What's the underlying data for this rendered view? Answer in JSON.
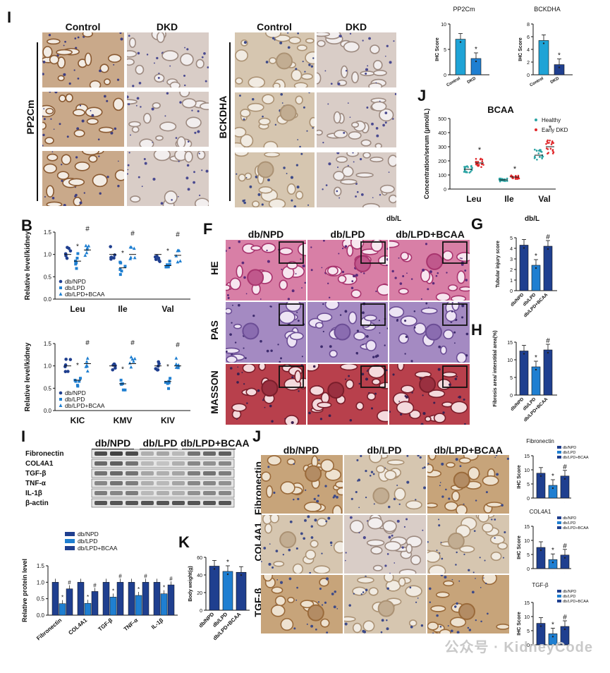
{
  "panel_labels": [
    "I",
    "J",
    "B",
    "F",
    "G",
    "H",
    "I",
    "K",
    "J"
  ],
  "ihc_top": {
    "left": {
      "col1": "Control",
      "col2": "DKD",
      "row_label": "PP2Cm"
    },
    "right": {
      "col1": "Control",
      "col2": "DKD",
      "row_label": "BCKDHA"
    }
  },
  "he_panel": {
    "col1": "db/NPD",
    "col2": "db/LPD",
    "col3": "db/LPD+BCAA",
    "rows": [
      "HE",
      "PAS",
      "MASSON"
    ],
    "cut_label": "db/L"
  },
  "wb_panel": {
    "groups": [
      "db/NPD",
      "db/LPD",
      "db/LPD+BCAA"
    ],
    "rows": [
      "Fibronectin",
      "COL4A1",
      "TGF-β",
      "TNF-α",
      "IL-1β",
      "β-actin"
    ]
  },
  "ihc_bottom": {
    "col1": "db/NPD",
    "col2": "db/LPD",
    "col3": "db/LPD+BCAA",
    "rows": [
      "Fibronectin",
      "COL4A1",
      "TGF-β"
    ]
  },
  "watermark": "公众号 · KidneyCode",
  "colors": {
    "dark_blue": "#1f3f8f",
    "mid_blue": "#1f7fd1",
    "cyan": "#1fa3d6",
    "healthy": "#2aa3a3",
    "early_dkd": "#e0282b",
    "brown": "#9a6a3a"
  },
  "chart_data": [
    {
      "id": "pp2cm",
      "type": "bar",
      "title": "PP2Cm",
      "ylabel": "IHC Score",
      "categories": [
        "Control",
        "DKD"
      ],
      "values": [
        7.0,
        3.2
      ],
      "ylim": [
        0,
        10
      ],
      "yticks": [
        "0",
        "5",
        "10"
      ],
      "sig": [
        "",
        "*"
      ]
    },
    {
      "id": "bckdha",
      "type": "bar",
      "title": "BCKDHA",
      "ylabel": "IHC Score",
      "categories": [
        "Control",
        "DKD"
      ],
      "values": [
        5.4,
        1.6
      ],
      "ylim": [
        0,
        8
      ],
      "yticks": [
        "0",
        "2",
        "4",
        "6",
        "8"
      ],
      "sig": [
        "",
        "*"
      ]
    },
    {
      "id": "bcaa_serum",
      "type": "scatter",
      "title": "BCAA",
      "ylabel": "Concentration/serum (μmol/L)",
      "categories": [
        "Leu",
        "Ile",
        "Val"
      ],
      "ylim": [
        0,
        500
      ],
      "yticks": [
        "0",
        "100",
        "200",
        "300",
        "400",
        "500"
      ],
      "series": [
        {
          "name": "Healthy",
          "means": [
            140,
            65,
            240
          ]
        },
        {
          "name": "Early DKD",
          "means": [
            185,
            85,
            300
          ]
        }
      ],
      "sig": [
        "*",
        "*",
        "*"
      ]
    },
    {
      "id": "b_aa",
      "type": "scatter",
      "ylabel": "Relative level/kidney",
      "categories": [
        "Leu",
        "Ile",
        "Val"
      ],
      "ylim": [
        0.0,
        1.5
      ],
      "yticks": [
        "0.0",
        "0.5",
        "1.0",
        "1.5"
      ],
      "series": [
        {
          "name": "db/NPD",
          "means": [
            1.0,
            1.0,
            1.0
          ]
        },
        {
          "name": "db/LPD",
          "means": [
            0.85,
            0.7,
            0.75
          ]
        },
        {
          "name": "db/LPD+BCAA",
          "means": [
            1.1,
            1.0,
            0.98
          ]
        }
      ],
      "sig": [
        "*#",
        "*#",
        "*#"
      ]
    },
    {
      "id": "b_keto",
      "type": "scatter",
      "ylabel": "Relative level/kidney",
      "categories": [
        "KIC",
        "KMV",
        "KIV"
      ],
      "ylim": [
        0.0,
        1.5
      ],
      "yticks": [
        "0.0",
        "0.5",
        "1.0",
        "1.5"
      ],
      "series": [
        {
          "name": "db/NPD",
          "means": [
            1.0,
            1.0,
            1.0
          ]
        },
        {
          "name": "db/LPD",
          "means": [
            0.68,
            0.6,
            0.65
          ]
        },
        {
          "name": "db/LPD+BCAA",
          "means": [
            1.05,
            1.05,
            1.0
          ]
        }
      ],
      "sig": [
        "*#",
        "*#",
        "*#"
      ]
    },
    {
      "id": "g_tubular",
      "type": "bar",
      "ylabel": "Tubular injury score",
      "categories": [
        "db/NPD",
        "db/LPD",
        "db/LPD+BCAA"
      ],
      "values": [
        4.3,
        2.4,
        4.2
      ],
      "ylim": [
        0,
        5
      ],
      "yticks": [
        "0",
        "1",
        "2",
        "3",
        "4",
        "5"
      ],
      "sig": [
        "",
        "*",
        "#"
      ]
    },
    {
      "id": "h_fibrosis",
      "type": "bar",
      "ylabel": "Fibrosis area/ interstitial area(%)",
      "categories": [
        "db/NPD",
        "db/LPD",
        "db/LPD+BCAA"
      ],
      "values": [
        12.5,
        8.0,
        12.8
      ],
      "ylim": [
        0,
        15
      ],
      "yticks": [
        "0",
        "5",
        "10",
        "15"
      ],
      "sig": [
        "",
        "*",
        "#"
      ]
    },
    {
      "id": "i_protein",
      "type": "bar",
      "ylabel": "Relative protein level",
      "categories": [
        "Fibronectin",
        "COL4A1",
        "TGF-β",
        "TNF-α",
        "IL-1β"
      ],
      "ylim": [
        0.0,
        1.5
      ],
      "yticks": [
        "0.0",
        "0.5",
        "1.0",
        "1.5"
      ],
      "series": [
        {
          "name": "db/NPD",
          "values": [
            1.0,
            1.0,
            1.0,
            1.0,
            1.0
          ]
        },
        {
          "name": "db/LPD",
          "values": [
            0.35,
            0.36,
            0.55,
            0.6,
            0.65
          ]
        },
        {
          "name": "db/LPD+BCAA",
          "values": [
            0.8,
            0.72,
            1.0,
            1.0,
            0.92
          ]
        }
      ],
      "sig": [
        "*#",
        "*#",
        "*#",
        "*#",
        "*#"
      ]
    },
    {
      "id": "k_bw",
      "type": "bar",
      "ylabel": "Body weight(g)",
      "categories": [
        "db/NPD",
        "db/LPD",
        "db/LPD+BCAA"
      ],
      "values": [
        50,
        44,
        43
      ],
      "ylim": [
        0,
        60
      ],
      "yticks": [
        "0",
        "20",
        "40",
        "60"
      ],
      "sig": [
        "",
        "*",
        ""
      ]
    },
    {
      "id": "j_fn",
      "type": "bar",
      "title": "Fibronectin",
      "ylabel": "IHC Score",
      "categories": [
        "db/NPD",
        "db/LPD",
        "db/LPD+BCAA"
      ],
      "values": [
        8.8,
        4.5,
        7.8
      ],
      "ylim": [
        0,
        15
      ],
      "yticks": [
        "0",
        "5",
        "10",
        "15"
      ],
      "sig": [
        "",
        "*",
        "#"
      ],
      "legend": [
        "db/NPD",
        "db/LPD",
        "db/LPD+BCAA"
      ]
    },
    {
      "id": "j_col",
      "type": "bar",
      "title": "COL4A1",
      "ylabel": "IHC Score",
      "categories": [
        "db/NPD",
        "db/LPD",
        "db/LPD+BCAA"
      ],
      "values": [
        7.5,
        3.2,
        4.8
      ],
      "ylim": [
        0,
        15
      ],
      "yticks": [
        "0",
        "5",
        "10",
        "15"
      ],
      "sig": [
        "",
        "*",
        "#"
      ],
      "legend": [
        "db/NPD",
        "db/LPD",
        "db/LPD+BCAA"
      ]
    },
    {
      "id": "j_tgf",
      "type": "bar",
      "title": "TGF-β",
      "ylabel": "IHC Score",
      "categories": [
        "db/NPD",
        "db/LPD",
        "db/LPD+BCAA"
      ],
      "values": [
        7.6,
        3.9,
        6.5
      ],
      "ylim": [
        0,
        15
      ],
      "yticks": [
        "0",
        "5",
        "10",
        "15"
      ],
      "sig": [
        "",
        "*",
        "#"
      ],
      "legend": [
        "db/NPD",
        "db/LPD",
        "db/LPD+BCAA"
      ]
    }
  ]
}
